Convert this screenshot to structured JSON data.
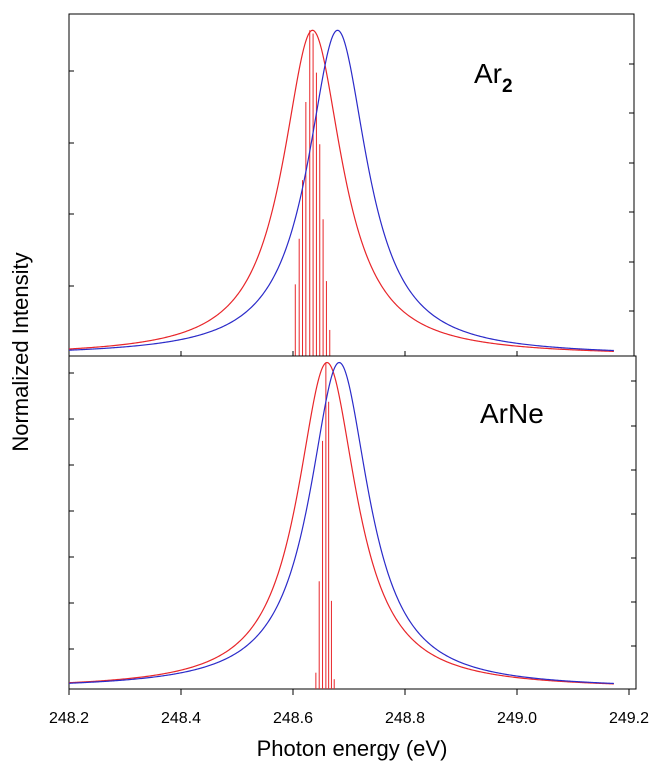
{
  "chart_data": [
    {
      "type": "line",
      "panel": "top",
      "label": "Ar",
      "label_subscript": "2",
      "xlim": [
        248.2,
        249.2
      ],
      "ylim": [
        0,
        1.05
      ],
      "ylabel": "Normalized Intensity",
      "grid": false,
      "series": [
        {
          "color": "#e8262a",
          "kind": "lorentzian",
          "center": 248.638,
          "fwhm": 0.13,
          "peak": 1.0
        },
        {
          "color": "#2b2bc9",
          "kind": "lorentzian",
          "center": 248.683,
          "fwhm": 0.13,
          "peak": 1.0
        }
      ],
      "sticks": {
        "color": "#e8262a",
        "x": [
          248.607,
          248.614,
          248.62,
          248.626,
          248.633,
          248.639,
          248.645,
          248.651,
          248.657,
          248.663,
          248.669
        ],
        "y": [
          0.22,
          0.36,
          0.54,
          0.78,
          1.0,
          0.99,
          0.87,
          0.65,
          0.42,
          0.23,
          0.08
        ]
      }
    },
    {
      "type": "line",
      "panel": "bottom",
      "label": "ArNe",
      "xlim": [
        248.2,
        249.2
      ],
      "ylim": [
        0,
        1.02
      ],
      "xlabel": "Photon energy (eV)",
      "grid": false,
      "series": [
        {
          "color": "#e8262a",
          "kind": "lorentzian",
          "center": 248.664,
          "fwhm": 0.13,
          "peak": 1.0
        },
        {
          "color": "#2b2bc9",
          "kind": "lorentzian",
          "center": 248.686,
          "fwhm": 0.13,
          "peak": 1.0
        }
      ],
      "sticks": {
        "color": "#e8262a",
        "x": [
          248.644,
          248.65,
          248.656,
          248.662,
          248.667,
          248.672,
          248.677
        ],
        "y": [
          0.05,
          0.33,
          0.76,
          1.0,
          0.88,
          0.27,
          0.03
        ]
      },
      "xticks": [
        "248.2",
        "248.4",
        "248.6",
        "248.8",
        "249.0",
        "249.2"
      ]
    }
  ]
}
